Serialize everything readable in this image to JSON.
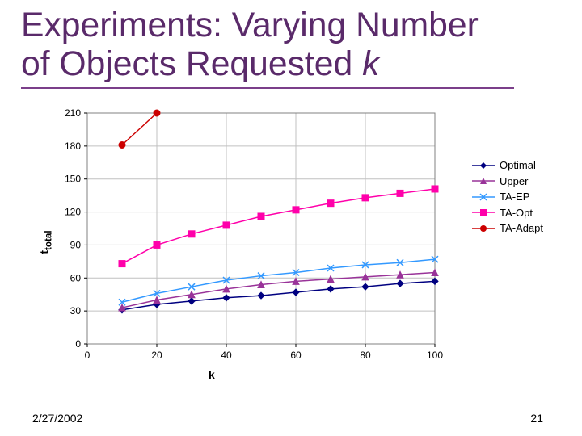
{
  "title": {
    "line1": "Experiments: Varying Number",
    "line2_prefix": "of Objects Requested ",
    "line2_italic": "k",
    "color": "#5a2a6a",
    "fontsize_pt": 32,
    "underline_color": "#7b3f8a",
    "underline_width": 2
  },
  "footer": {
    "date": "2/27/2002",
    "page": "21"
  },
  "chart": {
    "type": "line",
    "background_color": "#ffffff",
    "plot_border_color": "#808080",
    "grid_color": "#c0c0c0",
    "grid_on": true,
    "ylabel": "t_total",
    "xlabel": "k",
    "label_fontsize": 14,
    "tick_fontsize": 12,
    "tick_color": "#000000",
    "xlim": [
      0,
      100
    ],
    "xtick_step": 20,
    "xticks": [
      0,
      20,
      40,
      60,
      80,
      100
    ],
    "ylim": [
      0,
      210
    ],
    "yticks": [
      0,
      30,
      60,
      90,
      120,
      150,
      180,
      210
    ],
    "line_width": 1.5,
    "marker_size": 5,
    "legend": {
      "position": "right",
      "fontsize": 13
    },
    "series": [
      {
        "name": "Optimal",
        "color": "#000080",
        "marker": "diamond",
        "x": [
          10,
          20,
          30,
          40,
          50,
          60,
          70,
          80,
          90,
          100
        ],
        "y": [
          31,
          36,
          39,
          42,
          44,
          47,
          50,
          52,
          55,
          57
        ]
      },
      {
        "name": "Upper",
        "color": "#993399",
        "marker": "triangle",
        "x": [
          10,
          20,
          30,
          40,
          50,
          60,
          70,
          80,
          90,
          100
        ],
        "y": [
          33,
          40,
          45,
          50,
          54,
          57,
          59,
          61,
          63,
          65
        ]
      },
      {
        "name": "TA-EP",
        "color": "#3399ff",
        "marker": "x",
        "x": [
          10,
          20,
          30,
          40,
          50,
          60,
          70,
          80,
          90,
          100
        ],
        "y": [
          38,
          46,
          52,
          58,
          62,
          65,
          69,
          72,
          74,
          77
        ]
      },
      {
        "name": "TA-Opt",
        "color": "#ff00aa",
        "marker": "square",
        "x": [
          10,
          20,
          30,
          40,
          50,
          60,
          70,
          80,
          90,
          100
        ],
        "y": [
          73,
          90,
          100,
          108,
          116,
          122,
          128,
          133,
          137,
          141
        ]
      },
      {
        "name": "TA-Adapt",
        "color": "#cc0000",
        "marker": "circle",
        "x": [
          10,
          20
        ],
        "y": [
          181,
          210
        ]
      }
    ]
  }
}
